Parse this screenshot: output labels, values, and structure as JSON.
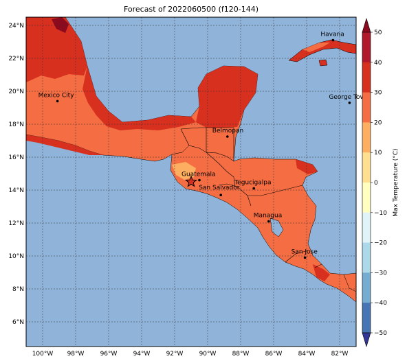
{
  "title": "Forecast of 2022060500 (f120-144)",
  "map": {
    "lon_range": [
      -101,
      -81
    ],
    "lat_range": [
      4.5,
      24.5
    ],
    "lon_ticks": [
      "100°W",
      "98°W",
      "96°W",
      "94°W",
      "92°W",
      "90°W",
      "88°W",
      "86°W",
      "84°W",
      "82°W"
    ],
    "lat_ticks": [
      "24°N",
      "22°N",
      "20°N",
      "18°N",
      "16°N",
      "14°N",
      "12°N",
      "10°N",
      "8°N",
      "6°N"
    ],
    "ocean_color": "#8fb3d9",
    "gridlines": true,
    "cities": [
      {
        "name": "Mexico City",
        "lon": -99.1,
        "lat": 19.4
      },
      {
        "name": "Havana",
        "lon": -82.4,
        "lat": 23.1
      },
      {
        "name": "George Town",
        "lon": -81.4,
        "lat": 19.3
      },
      {
        "name": "Belmopan",
        "lon": -88.8,
        "lat": 17.25
      },
      {
        "name": "Guatemala",
        "lon": -90.5,
        "lat": 14.6
      },
      {
        "name": "San Salvador",
        "lon": -89.2,
        "lat": 13.7
      },
      {
        "name": "Tegucigalpa",
        "lon": -87.2,
        "lat": 14.1
      },
      {
        "name": "Managua",
        "lon": -86.3,
        "lat": 12.1
      },
      {
        "name": "San Jose",
        "lon": -84.1,
        "lat": 9.9
      }
    ],
    "star_marker": {
      "lon": -91.0,
      "lat": 14.5
    }
  },
  "colorbar": {
    "label": "Max Temperature (°C)",
    "ticks": [
      "50",
      "40",
      "30",
      "20",
      "10",
      "0",
      "−10",
      "−20",
      "−30",
      "−40",
      "−50"
    ],
    "colors": [
      "#67001f",
      "#b2182b",
      "#d6604d",
      "#f4a582",
      "#fddbc7",
      "#f7f7f7",
      "#d1e5f0",
      "#92c5de",
      "#4393c3",
      "#2166ac",
      "#053061"
    ],
    "bands": [
      "#8b0a1e",
      "#b2182b",
      "#d7301f",
      "#f46d43",
      "#fdae61",
      "#fee090",
      "#ffffbf",
      "#e0f3f8",
      "#abd9e9",
      "#74add1",
      "#4575b4",
      "#313695"
    ]
  }
}
